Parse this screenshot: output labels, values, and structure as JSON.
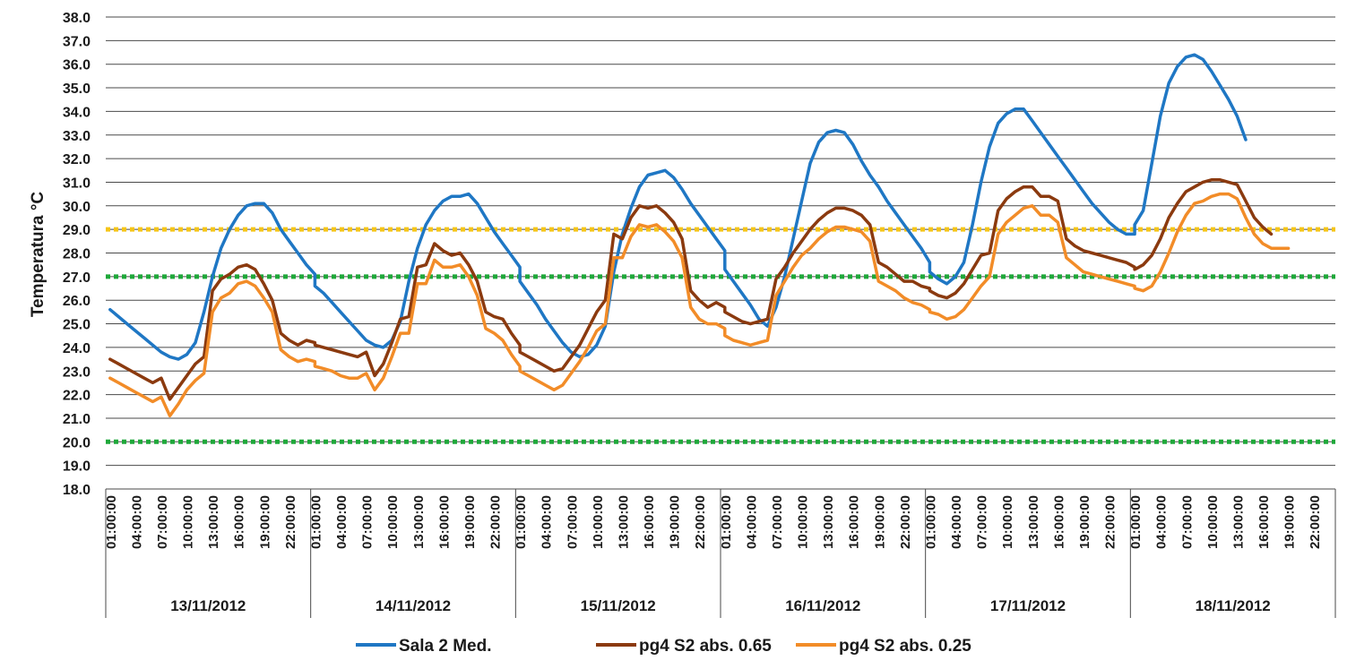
{
  "chart_data": {
    "type": "line",
    "ylabel": "Temperatura °C",
    "ylim": [
      18,
      38
    ],
    "yticks": [
      "18.0",
      "19.0",
      "20.0",
      "21.0",
      "22.0",
      "23.0",
      "24.0",
      "25.0",
      "26.0",
      "27.0",
      "28.0",
      "29.0",
      "30.0",
      "31.0",
      "32.0",
      "33.0",
      "34.0",
      "35.0",
      "36.0",
      "37.0",
      "38.0"
    ],
    "grid": true,
    "legend_position": "bottom",
    "days": [
      "13/11/2012",
      "14/11/2012",
      "15/11/2012",
      "16/11/2012",
      "17/11/2012",
      "18/11/2012"
    ],
    "hour_ticks": [
      "01:00:00",
      "04:00:00",
      "07:00:00",
      "10:00:00",
      "13:00:00",
      "16:00:00",
      "19:00:00",
      "22:00:00"
    ],
    "reference_lines": [
      {
        "y": 29,
        "color": "#F5C518"
      },
      {
        "y": 27,
        "color": "#1FA83A"
      },
      {
        "y": 20,
        "color": "#1FA83A"
      }
    ],
    "series": [
      {
        "name": "Sala 2 Med.",
        "color": "#1F77C4",
        "values": [
          [
            25.6,
            25.3,
            25.0,
            24.7,
            24.4,
            24.1,
            23.8,
            23.6,
            23.5,
            23.7,
            24.2,
            25.5,
            27.0,
            28.2,
            29.0,
            29.6,
            30.0,
            30.1,
            30.1,
            29.7,
            29.0,
            28.5,
            28.0,
            27.5,
            27.1
          ],
          [
            26.6,
            26.3,
            25.9,
            25.5,
            25.1,
            24.7,
            24.3,
            24.1,
            24.0,
            24.3,
            25.1,
            26.8,
            28.2,
            29.2,
            29.8,
            30.2,
            30.4,
            30.4,
            30.5,
            30.1,
            29.5,
            28.9,
            28.4,
            27.9,
            27.4
          ],
          [
            26.8,
            26.3,
            25.8,
            25.2,
            24.7,
            24.2,
            23.8,
            23.6,
            23.7,
            24.1,
            24.9,
            27.2,
            28.8,
            29.9,
            30.8,
            31.3,
            31.4,
            31.5,
            31.2,
            30.7,
            30.1,
            29.6,
            29.1,
            28.6,
            28.1
          ],
          [
            27.3,
            26.8,
            26.3,
            25.8,
            25.2,
            24.9,
            25.7,
            27.0,
            28.6,
            30.2,
            31.8,
            32.7,
            33.1,
            33.2,
            33.1,
            32.6,
            31.9,
            31.3,
            30.8,
            30.2,
            29.7,
            29.2,
            28.7,
            28.2,
            27.6
          ],
          [
            27.2,
            26.9,
            26.7,
            27.0,
            27.6,
            29.2,
            31.0,
            32.5,
            33.5,
            33.9,
            34.1,
            34.1,
            33.6,
            33.1,
            32.6,
            32.1,
            31.6,
            31.1,
            30.6,
            30.1,
            29.7,
            29.3,
            29.0,
            28.8,
            28.8
          ],
          [
            29.2,
            29.8,
            31.8,
            33.8,
            35.2,
            35.9,
            36.3,
            36.4,
            36.2,
            35.7,
            35.1,
            34.5,
            33.8,
            32.8
          ]
        ]
      },
      {
        "name": "pg4 S2 abs. 0.65",
        "color": "#8B3A0F",
        "values": [
          [
            23.5,
            23.3,
            23.1,
            22.9,
            22.7,
            22.5,
            22.7,
            21.8,
            22.3,
            22.8,
            23.3,
            23.6,
            26.4,
            26.9,
            27.1,
            27.4,
            27.5,
            27.3,
            26.7,
            26.0,
            24.6,
            24.3,
            24.1,
            24.3,
            24.2
          ],
          [
            24.1,
            24.0,
            23.9,
            23.8,
            23.7,
            23.6,
            23.8,
            22.8,
            23.3,
            24.2,
            25.2,
            25.3,
            27.4,
            27.5,
            28.4,
            28.1,
            27.9,
            28.0,
            27.5,
            26.8,
            25.5,
            25.3,
            25.2,
            24.6,
            24.1
          ],
          [
            23.8,
            23.6,
            23.4,
            23.2,
            23.0,
            23.1,
            23.6,
            24.1,
            24.8,
            25.5,
            26.0,
            28.8,
            28.6,
            29.5,
            30.0,
            29.9,
            30.0,
            29.7,
            29.3,
            28.6,
            26.4,
            26.0,
            25.7,
            25.9,
            25.7
          ],
          [
            25.5,
            25.3,
            25.1,
            25.0,
            25.1,
            25.2,
            26.9,
            27.4,
            28.0,
            28.5,
            29.0,
            29.4,
            29.7,
            29.9,
            29.9,
            29.8,
            29.6,
            29.2,
            27.6,
            27.4,
            27.1,
            26.8,
            26.8,
            26.6,
            26.5
          ],
          [
            26.4,
            26.2,
            26.1,
            26.3,
            26.7,
            27.3,
            27.9,
            28.0,
            29.8,
            30.3,
            30.6,
            30.8,
            30.8,
            30.4,
            30.4,
            30.2,
            28.6,
            28.3,
            28.1,
            28.0,
            27.9,
            27.8,
            27.7,
            27.6,
            27.4
          ],
          [
            27.3,
            27.5,
            27.9,
            28.6,
            29.5,
            30.1,
            30.6,
            30.8,
            31.0,
            31.1,
            31.1,
            31.0,
            30.9,
            30.2,
            29.5,
            29.1,
            28.8
          ]
        ]
      },
      {
        "name": "pg4 S2 abs. 0.25",
        "color": "#F28C28",
        "values": [
          [
            22.7,
            22.5,
            22.3,
            22.1,
            21.9,
            21.7,
            21.9,
            21.1,
            21.6,
            22.2,
            22.6,
            22.9,
            25.5,
            26.1,
            26.3,
            26.7,
            26.8,
            26.6,
            26.1,
            25.5,
            23.9,
            23.6,
            23.4,
            23.5,
            23.4
          ],
          [
            23.2,
            23.1,
            23.0,
            22.8,
            22.7,
            22.7,
            22.9,
            22.2,
            22.7,
            23.6,
            24.6,
            24.6,
            26.7,
            26.7,
            27.7,
            27.4,
            27.4,
            27.5,
            27.0,
            26.2,
            24.8,
            24.6,
            24.3,
            23.7,
            23.2
          ],
          [
            23.0,
            22.8,
            22.6,
            22.4,
            22.2,
            22.4,
            22.9,
            23.4,
            24.0,
            24.7,
            25.0,
            27.8,
            27.8,
            28.7,
            29.2,
            29.1,
            29.2,
            28.9,
            28.5,
            27.8,
            25.7,
            25.2,
            25.0,
            25.0,
            24.8
          ],
          [
            24.5,
            24.3,
            24.2,
            24.1,
            24.2,
            24.3,
            26.2,
            26.8,
            27.4,
            27.9,
            28.2,
            28.6,
            28.9,
            29.1,
            29.1,
            29.0,
            28.9,
            28.5,
            26.8,
            26.6,
            26.4,
            26.1,
            25.9,
            25.8,
            25.6
          ],
          [
            25.5,
            25.4,
            25.2,
            25.3,
            25.6,
            26.1,
            26.6,
            27.0,
            28.8,
            29.3,
            29.6,
            29.9,
            30.0,
            29.6,
            29.6,
            29.3,
            27.8,
            27.5,
            27.2,
            27.1,
            27.0,
            26.9,
            26.8,
            26.7,
            26.6
          ],
          [
            26.5,
            26.4,
            26.6,
            27.2,
            28.0,
            28.9,
            29.6,
            30.1,
            30.2,
            30.4,
            30.5,
            30.5,
            30.3,
            29.5,
            28.8,
            28.4,
            28.2,
            28.2,
            28.2
          ]
        ]
      }
    ]
  }
}
